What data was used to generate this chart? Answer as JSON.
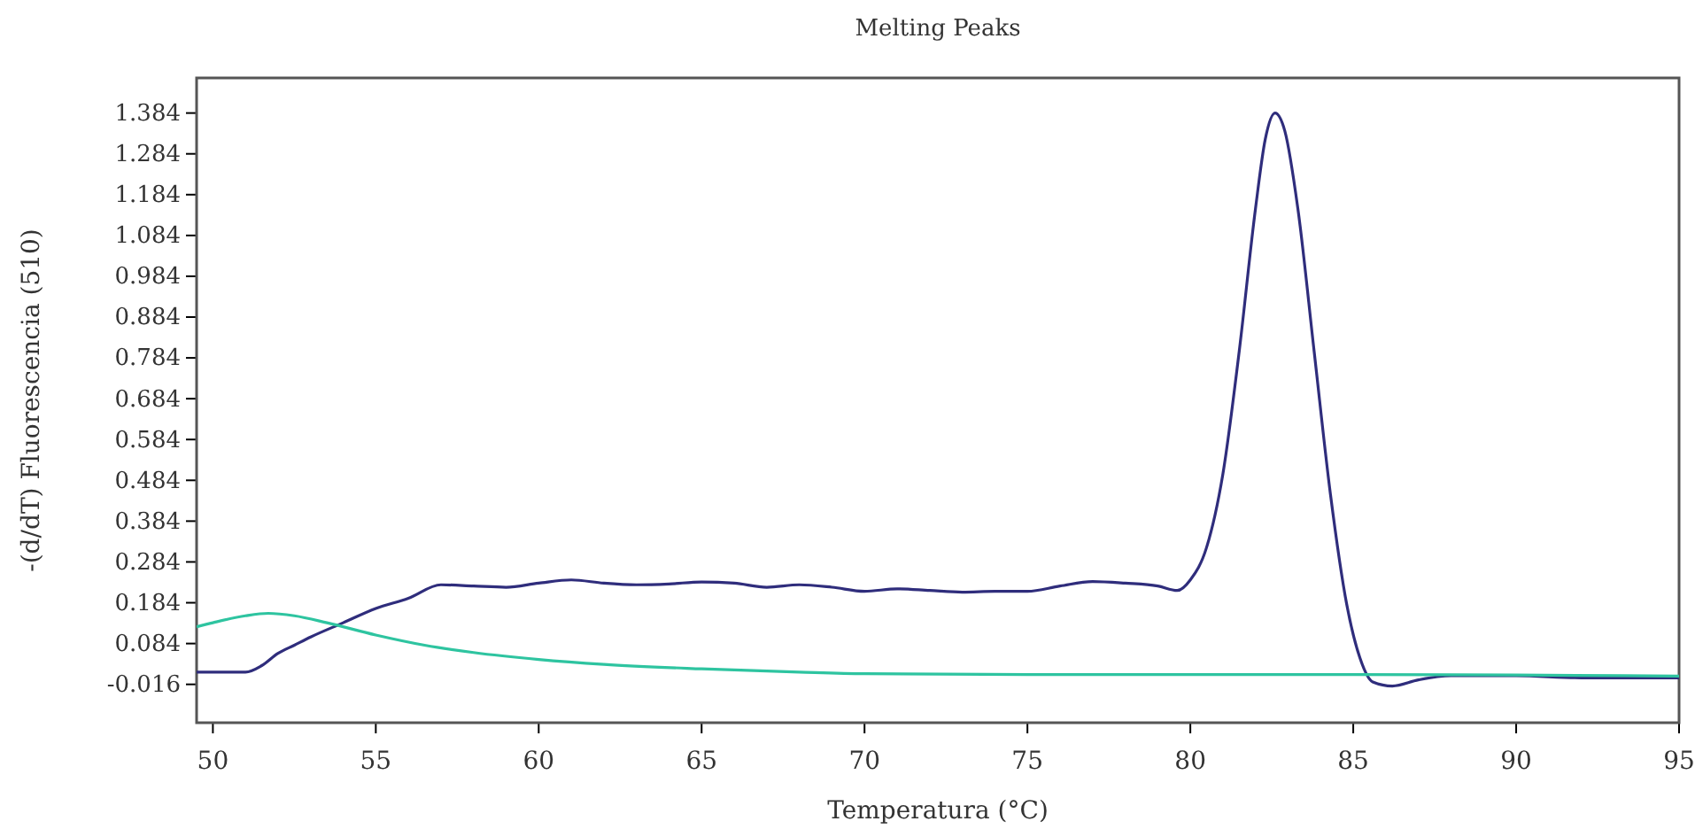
{
  "chart_data": {
    "type": "line",
    "title": "Melting Peaks",
    "xlabel": "Temperatura (°C)",
    "ylabel": "-(d/dT) Fluorescencia (510)",
    "xlim": [
      49.5,
      95
    ],
    "xticks": [
      50,
      55,
      60,
      65,
      70,
      75,
      80,
      85,
      90,
      95
    ],
    "ylim": [
      -0.11,
      1.47
    ],
    "yticks": [
      -0.016,
      0.084,
      0.184,
      0.284,
      0.384,
      0.484,
      0.584,
      0.684,
      0.784,
      0.884,
      0.984,
      1.084,
      1.184,
      1.284,
      1.384
    ],
    "grid": false,
    "marker": "none",
    "line_style": "solid",
    "series": [
      {
        "color": "#2f2d7c",
        "x": [
          49.5,
          50,
          51,
          51.5,
          52,
          52.5,
          53,
          54,
          55,
          56,
          57,
          58,
          59,
          60,
          61,
          62,
          63,
          64,
          65,
          66,
          67,
          68,
          69,
          70,
          71,
          72,
          73,
          74,
          75,
          76,
          77,
          78,
          79,
          79.6,
          80,
          80.5,
          81,
          81.5,
          82,
          82.3,
          82.6,
          82.9,
          83.3,
          83.8,
          84.3,
          84.8,
          85.2,
          85.6,
          86.2,
          87,
          88,
          90,
          92,
          95
        ],
        "values": [
          0.014,
          0.014,
          0.014,
          0.03,
          0.06,
          0.08,
          0.1,
          0.135,
          0.17,
          0.195,
          0.228,
          0.225,
          0.222,
          0.232,
          0.24,
          0.232,
          0.228,
          0.23,
          0.235,
          0.232,
          0.222,
          0.228,
          0.222,
          0.212,
          0.218,
          0.214,
          0.21,
          0.212,
          0.212,
          0.225,
          0.236,
          0.232,
          0.225,
          0.214,
          0.24,
          0.32,
          0.5,
          0.8,
          1.15,
          1.32,
          1.384,
          1.34,
          1.15,
          0.8,
          0.45,
          0.18,
          0.05,
          -0.01,
          -0.02,
          -0.005,
          0.005,
          0.005,
          0.0,
          0.0
        ]
      },
      {
        "color": "#2ec4a0",
        "x": [
          49.5,
          50,
          51,
          51.7,
          52.5,
          53.5,
          55,
          56.5,
          58,
          60,
          62,
          65,
          68,
          70,
          75,
          80,
          85,
          90,
          95
        ],
        "values": [
          0.125,
          0.135,
          0.152,
          0.158,
          0.152,
          0.135,
          0.105,
          0.08,
          0.062,
          0.045,
          0.033,
          0.022,
          0.014,
          0.01,
          0.008,
          0.008,
          0.008,
          0.007,
          0.004
        ]
      }
    ]
  }
}
